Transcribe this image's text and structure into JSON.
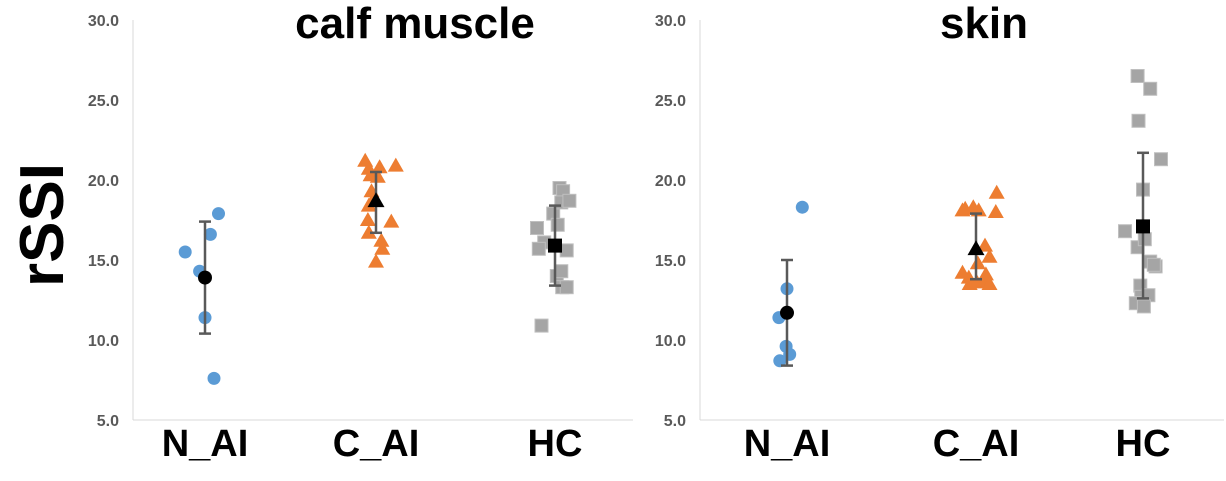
{
  "chart_data": {
    "type": "scatter",
    "ylabel": "rSSI",
    "ylim": [
      5,
      30
    ],
    "yticks": [
      "5.0",
      "10.0",
      "15.0",
      "20.0",
      "25.0",
      "30.0"
    ],
    "categories": [
      "N_AI",
      "C_AI",
      "HC"
    ],
    "colors": {
      "N_AI": "#5b9bd5",
      "C_AI": "#ed7d31",
      "HC": "#a5a5a5",
      "mean": "#000000",
      "errorbar": "#595959"
    },
    "panels": [
      {
        "title": "calf muscle",
        "series": [
          {
            "name": "N_AI",
            "marker": "circle",
            "points": [
              [
                -0.44,
                15.5
              ],
              [
                -0.12,
                14.3
              ],
              [
                0.12,
                16.6
              ],
              [
                0.3,
                17.9
              ],
              [
                0.0,
                11.4
              ],
              [
                0.2,
                7.6
              ]
            ],
            "mean": 13.9,
            "sd": [
              10.4,
              17.4
            ]
          },
          {
            "name": "C_AI",
            "marker": "triangle",
            "points": [
              [
                -0.24,
                21.2
              ],
              [
                -0.16,
                20.7
              ],
              [
                -0.12,
                20.3
              ],
              [
                0.04,
                20.2
              ],
              [
                0.08,
                20.8
              ],
              [
                0.44,
                20.9
              ],
              [
                -0.1,
                19.3
              ],
              [
                -0.06,
                18.8
              ],
              [
                -0.16,
                18.4
              ],
              [
                -0.18,
                17.5
              ],
              [
                0.34,
                17.4
              ],
              [
                -0.16,
                16.7
              ],
              [
                0.12,
                16.2
              ],
              [
                0.14,
                15.7
              ],
              [
                0.0,
                14.9
              ]
            ],
            "mean": 18.7,
            "sd": [
              16.7,
              20.5
            ]
          },
          {
            "name": "HC",
            "marker": "square",
            "points": [
              [
                -0.4,
                17.0
              ],
              [
                -0.04,
                17.9
              ],
              [
                -0.24,
                16.1
              ],
              [
                -0.36,
                15.7
              ],
              [
                0.06,
                17.2
              ],
              [
                0.1,
                19.5
              ],
              [
                0.18,
                19.3
              ],
              [
                0.14,
                18.6
              ],
              [
                0.32,
                18.7
              ],
              [
                0.26,
                15.6
              ],
              [
                0.04,
                14.0
              ],
              [
                0.14,
                14.3
              ],
              [
                0.16,
                13.3
              ],
              [
                0.26,
                13.3
              ],
              [
                -0.3,
                10.9
              ]
            ],
            "mean": 15.9,
            "sd": [
              13.4,
              18.4
            ]
          }
        ]
      },
      {
        "title": "skin",
        "series": [
          {
            "name": "N_AI",
            "marker": "circle",
            "points": [
              [
                0.34,
                18.3
              ],
              [
                0.0,
                13.2
              ],
              [
                -0.18,
                11.4
              ],
              [
                -0.02,
                9.6
              ],
              [
                0.06,
                9.1
              ],
              [
                -0.16,
                8.7
              ]
            ],
            "mean": 11.7,
            "sd": [
              8.4,
              15.0
            ]
          },
          {
            "name": "C_AI",
            "marker": "triangle",
            "points": [
              [
                -0.3,
                18.1
              ],
              [
                -0.24,
                18.2
              ],
              [
                -0.06,
                18.3
              ],
              [
                0.06,
                18.1
              ],
              [
                0.46,
                19.2
              ],
              [
                0.44,
                18.0
              ],
              [
                -0.3,
                14.2
              ],
              [
                -0.16,
                13.9
              ],
              [
                -0.14,
                13.5
              ],
              [
                0.02,
                13.6
              ],
              [
                0.04,
                14.8
              ],
              [
                0.2,
                15.9
              ],
              [
                0.3,
                15.2
              ],
              [
                0.22,
                14.1
              ],
              [
                0.18,
                13.7
              ],
              [
                0.3,
                13.5
              ]
            ],
            "mean": 15.7,
            "sd": [
              13.8,
              17.9
            ]
          },
          {
            "name": "HC",
            "marker": "square",
            "points": [
              [
                -0.12,
                26.5
              ],
              [
                0.16,
                25.7
              ],
              [
                -0.1,
                23.7
              ],
              [
                0.4,
                21.3
              ],
              [
                0.0,
                19.4
              ],
              [
                -0.4,
                16.8
              ],
              [
                -0.12,
                15.8
              ],
              [
                0.04,
                16.3
              ],
              [
                0.16,
                14.9
              ],
              [
                0.28,
                14.6
              ],
              [
                0.24,
                14.7
              ],
              [
                -0.06,
                13.4
              ],
              [
                -0.04,
                12.7
              ],
              [
                0.12,
                12.8
              ],
              [
                -0.16,
                12.3
              ],
              [
                0.02,
                12.1
              ]
            ],
            "mean": 17.1,
            "sd": [
              12.6,
              21.7
            ]
          }
        ]
      }
    ]
  }
}
